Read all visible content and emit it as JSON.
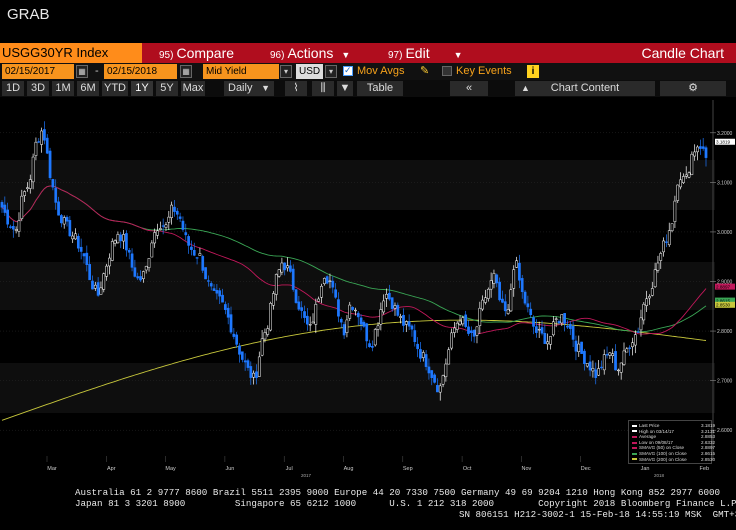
{
  "window": {
    "title": "GRAB"
  },
  "toolbar": {
    "ticker": "USGG30YR Index",
    "compare": {
      "num": "95)",
      "label": "Compare"
    },
    "actions": {
      "num": "96)",
      "label": "Actions"
    },
    "edit": {
      "num": "97)",
      "label": "Edit"
    },
    "chart_name": "Candle Chart"
  },
  "options": {
    "start_date": "02/15/2017",
    "dash": "-",
    "end_date": "02/15/2018",
    "yield_type": "Mid Yield",
    "currency": "USD",
    "mov_avgs_label": "Mov Avgs",
    "key_events_label": "Key Events",
    "info_icon": "i"
  },
  "ranges": {
    "items": [
      "1D",
      "3D",
      "1M",
      "6M",
      "YTD",
      "1Y",
      "5Y",
      "Max"
    ],
    "selected": "1Y",
    "period": "Daily",
    "table_label": "Table",
    "chart_content_label": "Chart Content"
  },
  "colors": {
    "up": "#ffffff",
    "down": "#1e78ff",
    "sma50": "#c2185b",
    "sma100": "#3aa655",
    "sma200": "#c8c83c",
    "orange": "#f7941d",
    "red_bar": "#b00d1e"
  },
  "chart_data": {
    "type": "candlestick",
    "ylim": [
      2.55,
      3.25
    ],
    "y_ticks": [
      "3.2000",
      "3.1000",
      "3.0000",
      "2.9000",
      "2.8000",
      "2.7000",
      "2.6000"
    ],
    "x_ticks": [
      "Mar",
      "Apr",
      "May",
      "Jun",
      "Jul",
      "Aug",
      "Sep",
      "Oct",
      "Nov",
      "Dec",
      "Jan",
      "Feb"
    ],
    "year_labels": [
      "2017",
      "2018"
    ],
    "series_path": [
      3.05,
      3.02,
      3.0,
      3.07,
      3.1,
      3.18,
      3.21,
      3.12,
      3.05,
      3.02,
      3.0,
      2.98,
      2.95,
      2.9,
      2.87,
      2.92,
      2.97,
      3.0,
      2.98,
      2.93,
      2.9,
      2.92,
      2.99,
      3.02,
      3.01,
      3.05,
      3.03,
      2.98,
      2.96,
      2.95,
      2.9,
      2.87,
      2.86,
      2.83,
      2.79,
      2.75,
      2.72,
      2.7,
      2.78,
      2.82,
      2.9,
      2.94,
      2.92,
      2.87,
      2.83,
      2.8,
      2.85,
      2.92,
      2.9,
      2.85,
      2.8,
      2.86,
      2.84,
      2.8,
      2.77,
      2.82,
      2.88,
      2.86,
      2.83,
      2.81,
      2.8,
      2.76,
      2.74,
      2.71,
      2.68,
      2.74,
      2.8,
      2.83,
      2.8,
      2.78,
      2.84,
      2.88,
      2.91,
      2.85,
      2.83,
      2.95,
      2.88,
      2.84,
      2.8,
      2.79,
      2.78,
      2.82,
      2.83,
      2.81,
      2.77,
      2.75,
      2.73,
      2.71,
      2.74,
      2.76,
      2.72,
      2.75,
      2.78,
      2.8,
      2.86,
      2.89,
      2.94,
      2.98,
      3.02,
      3.12,
      3.1,
      3.16,
      3.18,
      3.15
    ],
    "last_price": "3.1819",
    "high_label": "3.2131",
    "legend": [
      {
        "label": "Last Price",
        "value": "3.1819"
      },
      {
        "label": "High on 03/14/17",
        "value": "3.2131"
      },
      {
        "label": "Average",
        "value": "2.8853"
      },
      {
        "label": "Low on 09/08/17",
        "value": "2.6332"
      },
      {
        "label": "SMAVG (50) on Close",
        "value": "2.8897"
      },
      {
        "label": "SMAVG (100) on Close",
        "value": "2.8615"
      },
      {
        "label": "SMAVG (200) on Close",
        "value": "2.8530"
      }
    ],
    "right_tags": [
      {
        "label": "3.1819",
        "value": 3.1819,
        "color": "#ffffff"
      },
      {
        "label": "2.8897",
        "value": 2.8897,
        "color": "#c2185b"
      },
      {
        "label": "2.8615",
        "value": 2.8615,
        "color": "#3aa655"
      },
      {
        "label": "2.8530",
        "value": 2.853,
        "color": "#c8c83c"
      }
    ]
  },
  "footer": {
    "line1": "Australia 61 2 9777 8600 Brazil 5511 2395 9000 Europe 44 20 7330 7500 Germany 49 69 9204 1210 Hong Kong 852 2977 6000",
    "line2": "Japan 81 3 3201 8900         Singapore 65 6212 1000      U.S. 1 212 318 2000        Copyright 2018 Bloomberg Finance L.P.",
    "line3": "SN 806151 H212-3002-1 15-Feb-18 14:55:19 MSK  GMT+3:00"
  }
}
